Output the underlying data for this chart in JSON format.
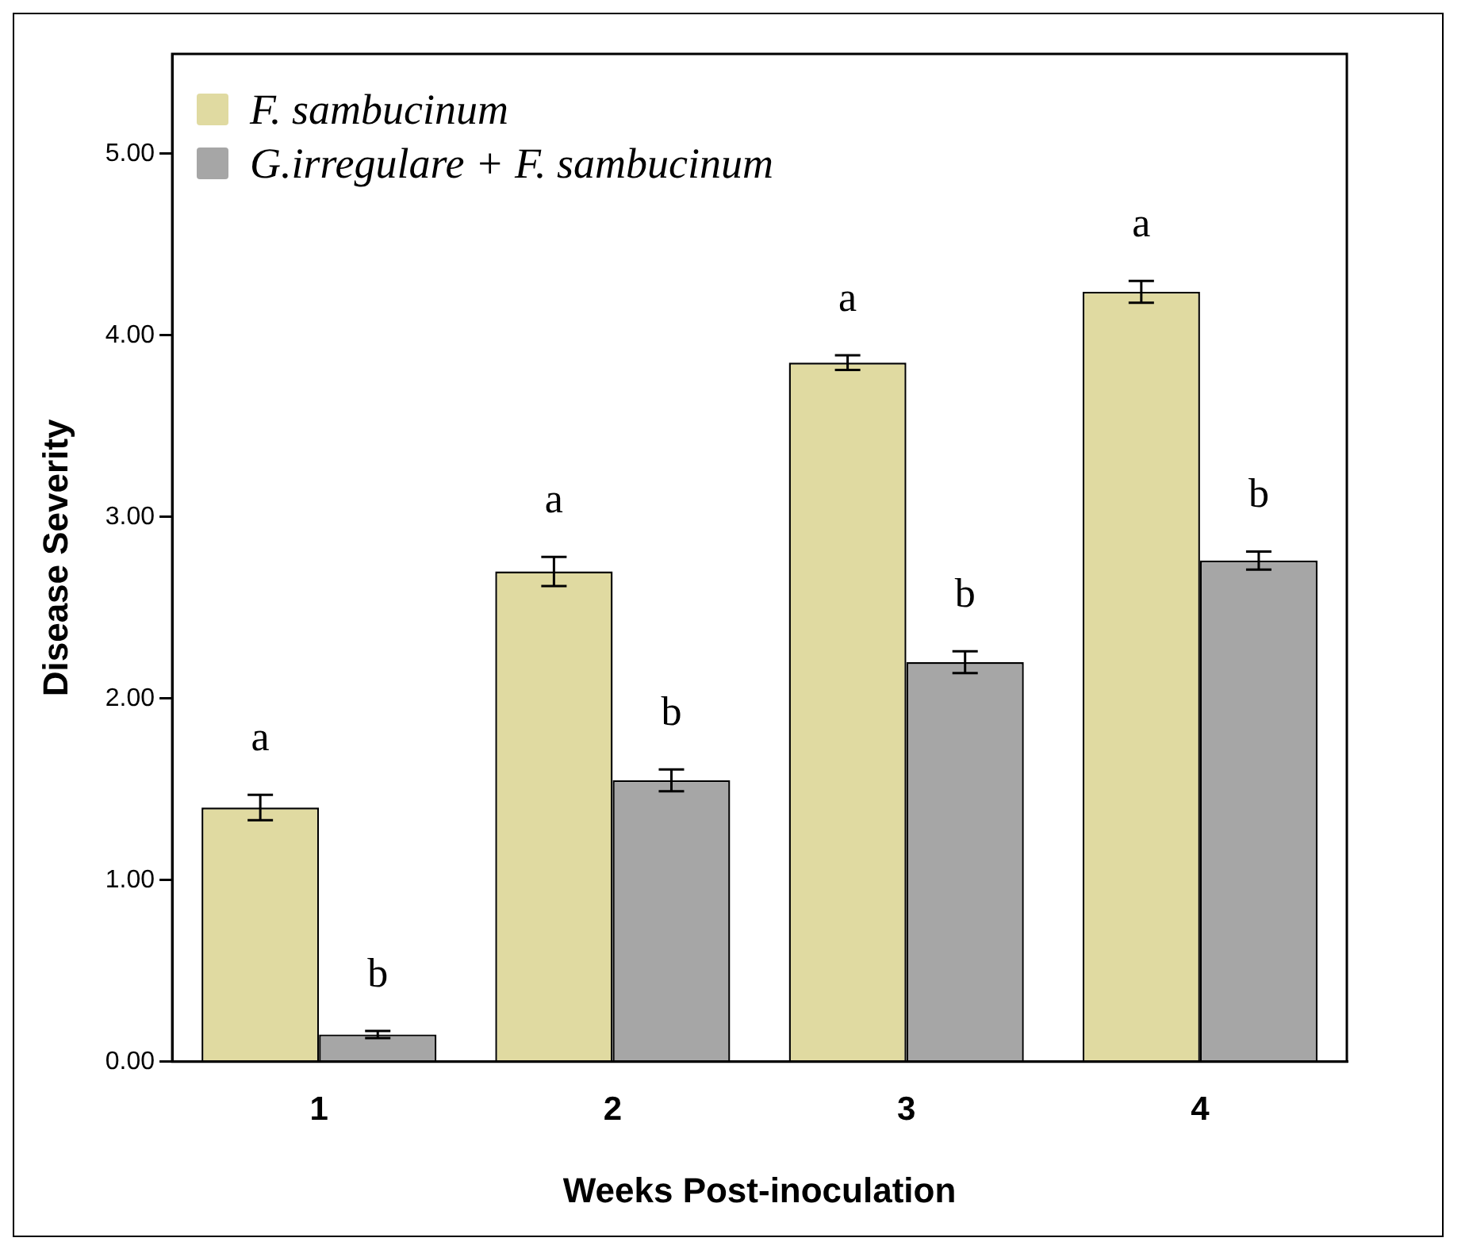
{
  "chart_data": {
    "type": "bar",
    "xlabel": "Weeks Post-inoculation",
    "ylabel": "Disease Severity",
    "categories": [
      "1",
      "2",
      "3",
      "4"
    ],
    "series": [
      {
        "name": "F. sambucinum",
        "color": "#e0daa1",
        "values": [
          1.4,
          2.7,
          3.85,
          4.24
        ],
        "errors": [
          0.07,
          0.08,
          0.04,
          0.06
        ],
        "value_labels": [
          "a",
          "a",
          "a",
          "a"
        ]
      },
      {
        "name": "G.irregulare + F. sambucinum",
        "color": "#a6a6a6",
        "values": [
          0.15,
          1.55,
          2.2,
          2.76
        ],
        "errors": [
          0.02,
          0.06,
          0.06,
          0.05
        ],
        "value_labels": [
          "b",
          "b",
          "b",
          "b"
        ]
      }
    ],
    "ylim": [
      0,
      5.55
    ],
    "yticks": [
      {
        "value": 0,
        "label": "0.00"
      },
      {
        "value": 1,
        "label": "1.00"
      },
      {
        "value": 2,
        "label": "2.00"
      },
      {
        "value": 3,
        "label": "3.00"
      },
      {
        "value": 4,
        "label": "4.00"
      },
      {
        "value": 5,
        "label": "5.00"
      }
    ],
    "grid": false,
    "legend": "top left"
  }
}
